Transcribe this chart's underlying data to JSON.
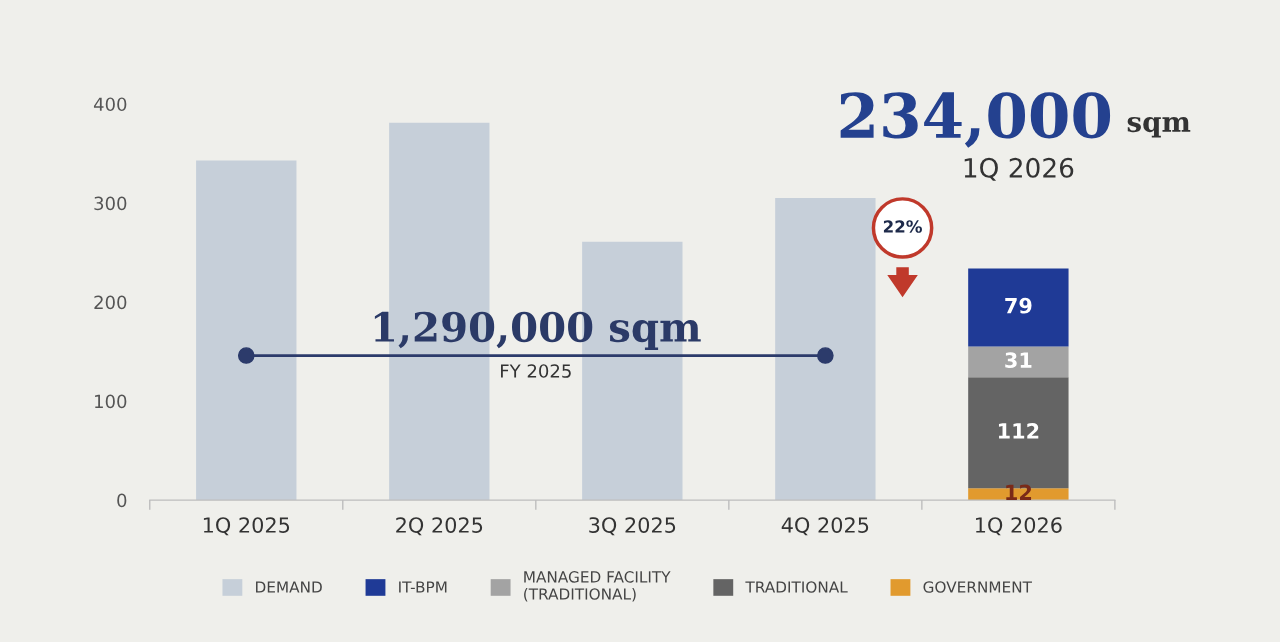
{
  "chart_data": {
    "type": "bar",
    "stacked": true,
    "categories": [
      "1Q 2025",
      "2Q 2025",
      "3Q 2025",
      "4Q 2025",
      "1Q 2026"
    ],
    "series": [
      {
        "name": "GOVERNMENT",
        "color": "#e19a2e",
        "values": [
          null,
          null,
          null,
          null,
          12
        ],
        "value_labels": [
          null,
          null,
          null,
          null,
          "12"
        ]
      },
      {
        "name": "TRADITIONAL",
        "color": "#646464",
        "values": [
          null,
          null,
          null,
          null,
          112
        ],
        "value_labels": [
          null,
          null,
          null,
          null,
          "112"
        ]
      },
      {
        "name": "MANAGED FACILITY\n(TRADITIONAL)",
        "color": "#a3a3a3",
        "values": [
          null,
          null,
          null,
          null,
          31
        ],
        "value_labels": [
          null,
          null,
          null,
          null,
          "31"
        ]
      },
      {
        "name": "IT-BPM",
        "color": "#1f3a96",
        "values": [
          null,
          null,
          null,
          null,
          79
        ],
        "value_labels": [
          null,
          null,
          null,
          null,
          "79"
        ]
      },
      {
        "name": "DEMAND",
        "color": "#c6cfd9",
        "values": [
          343,
          381,
          261,
          305,
          null
        ]
      },
      {
        "type": "line",
        "color": "#2c3b6b",
        "x": [
          "1Q 2025",
          "4Q 2025"
        ],
        "values": [
          146,
          146
        ],
        "marker": "circle"
      }
    ],
    "ylim": [
      0,
      400
    ],
    "yticks": [
      0,
      100,
      200,
      300,
      400
    ],
    "legend": "bottom",
    "annotations": [
      "1,290,000 sqm",
      "FY 2025",
      "234,000",
      "sqm",
      "1Q 2026",
      "22%"
    ]
  }
}
